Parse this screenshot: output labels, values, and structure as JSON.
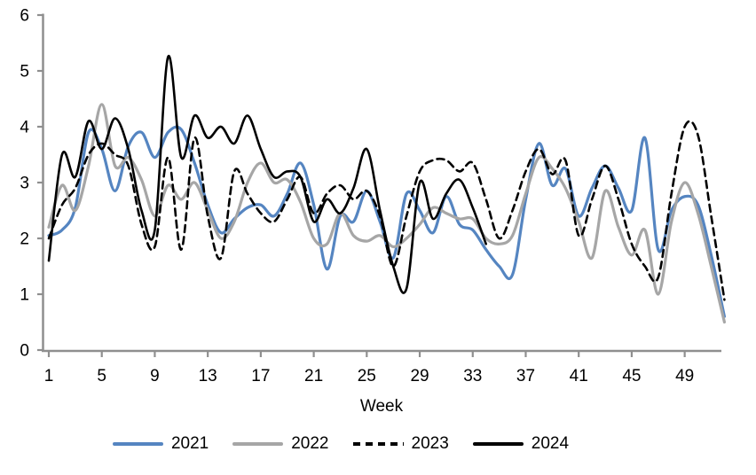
{
  "chart_data": {
    "type": "line",
    "title": "",
    "xlabel": "Week",
    "ylabel": "",
    "xlim": [
      1,
      52
    ],
    "ylim": [
      0,
      6
    ],
    "yticks": [
      0,
      1,
      2,
      3,
      4,
      5,
      6
    ],
    "xticks": [
      1,
      5,
      9,
      13,
      17,
      21,
      25,
      29,
      33,
      37,
      41,
      45,
      49
    ],
    "grid": false,
    "smooth": true,
    "legend_position": "bottom",
    "axis_color": "#8F8F8F",
    "text_color": "#000000",
    "x": [
      1,
      2,
      3,
      4,
      5,
      6,
      7,
      8,
      9,
      10,
      11,
      12,
      13,
      14,
      15,
      16,
      17,
      18,
      19,
      20,
      21,
      22,
      23,
      24,
      25,
      26,
      27,
      28,
      29,
      30,
      31,
      32,
      33,
      34,
      35,
      36,
      37,
      38,
      39,
      40,
      41,
      42,
      43,
      44,
      45,
      46,
      47,
      48,
      49,
      50,
      51,
      52
    ],
    "series": [
      {
        "name": "2021",
        "color": "#5585C1",
        "style": "solid",
        "values": [
          2.05,
          2.15,
          2.55,
          3.9,
          3.6,
          2.85,
          3.65,
          3.9,
          3.45,
          3.9,
          3.95,
          3.35,
          2.6,
          2.1,
          2.35,
          2.55,
          2.6,
          2.4,
          2.8,
          3.35,
          2.6,
          1.45,
          2.4,
          2.3,
          2.85,
          2.3,
          1.65,
          2.8,
          2.5,
          2.1,
          2.75,
          2.25,
          2.15,
          1.8,
          1.5,
          1.35,
          2.7,
          3.7,
          2.95,
          3.25,
          2.4,
          2.9,
          3.3,
          2.9,
          2.5,
          3.8,
          1.8,
          2.5,
          2.75,
          2.6,
          1.7,
          0.6
        ]
      },
      {
        "name": "2022",
        "color": "#A6A6A6",
        "style": "solid",
        "values": [
          2.2,
          2.95,
          2.5,
          3.3,
          4.4,
          3.3,
          3.45,
          3.05,
          2.4,
          2.95,
          2.7,
          3.0,
          2.5,
          2.0,
          2.3,
          3.0,
          3.35,
          3.0,
          3.05,
          2.65,
          2.0,
          1.9,
          2.45,
          2.05,
          1.95,
          2.05,
          1.85,
          2.0,
          2.25,
          2.55,
          2.45,
          2.35,
          2.35,
          2.0,
          1.9,
          2.05,
          2.8,
          3.45,
          3.25,
          2.9,
          2.3,
          1.65,
          2.85,
          2.2,
          1.7,
          2.15,
          1.0,
          2.3,
          3.0,
          2.45,
          1.5,
          0.5
        ]
      },
      {
        "name": "2023",
        "color": "#000000",
        "style": "dashed",
        "values": [
          2.0,
          2.6,
          2.9,
          3.5,
          3.7,
          3.5,
          3.3,
          2.25,
          1.85,
          3.45,
          1.8,
          3.8,
          2.4,
          1.65,
          3.2,
          2.8,
          2.45,
          2.3,
          2.7,
          3.1,
          2.45,
          2.8,
          2.95,
          2.7,
          2.85,
          2.4,
          1.5,
          2.4,
          3.2,
          3.4,
          3.4,
          3.2,
          3.35,
          2.7,
          2.0,
          2.5,
          3.2,
          3.6,
          3.15,
          3.4,
          2.05,
          2.7,
          3.3,
          2.7,
          1.9,
          1.5,
          1.3,
          2.8,
          4.0,
          3.85,
          2.4,
          0.9
        ]
      },
      {
        "name": "2024",
        "color": "#000000",
        "style": "solid",
        "values": [
          1.6,
          3.5,
          3.1,
          4.1,
          3.6,
          4.15,
          3.6,
          2.5,
          2.15,
          5.25,
          3.45,
          4.2,
          3.8,
          4.0,
          3.7,
          4.2,
          3.6,
          3.1,
          3.2,
          3.1,
          2.3,
          2.7,
          2.45,
          2.9,
          3.6,
          2.5,
          1.5,
          1.1,
          3.0,
          2.35,
          2.8,
          3.05,
          2.55,
          1.9,
          null,
          null,
          null,
          null,
          null,
          null,
          null,
          null,
          null,
          null,
          null,
          null,
          null,
          null,
          null,
          null,
          null,
          null
        ]
      }
    ]
  }
}
